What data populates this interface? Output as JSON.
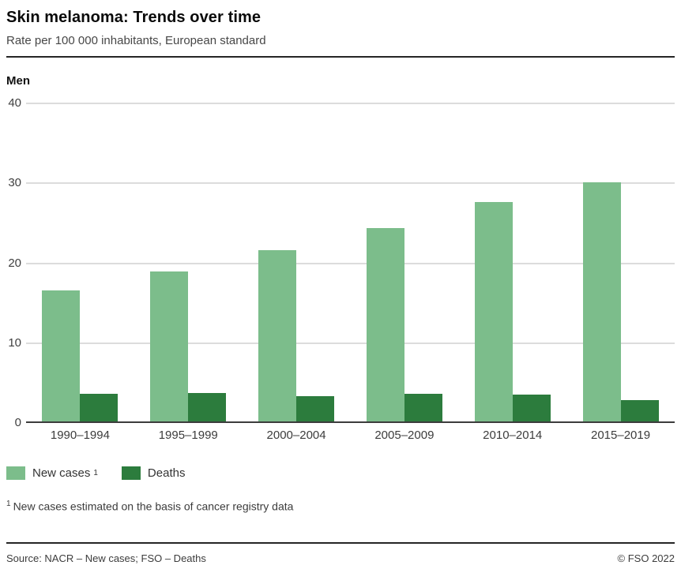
{
  "header": {
    "title": "Skin melanoma: Trends over time",
    "subtitle": "Rate per 100 000 inhabitants, European standard"
  },
  "chart_data": {
    "type": "bar",
    "title": "Men",
    "categories": [
      "1990–1994",
      "1995–1999",
      "2000–2004",
      "2005–2009",
      "2010–2014",
      "2015–2019"
    ],
    "series": [
      {
        "name": "New cases",
        "footnote_marker": "1",
        "color": "#7cbd8b",
        "values": [
          16.6,
          19.0,
          21.6,
          24.4,
          27.7,
          30.1
        ]
      },
      {
        "name": "Deaths",
        "color": "#2c7c3d",
        "values": [
          3.7,
          3.8,
          3.4,
          3.7,
          3.6,
          2.9
        ]
      }
    ],
    "xlabel": "",
    "ylabel": "Rate per 100 000 inhabitants",
    "ylim": [
      0,
      40
    ],
    "yticks": [
      0,
      10,
      20,
      30,
      40
    ],
    "grid": "horizontal",
    "legend_position": "bottom",
    "colors": {
      "grid": "#dcdcdc",
      "axis": "#3c3c3c"
    }
  },
  "footnote": {
    "marker": "1",
    "text": "New cases estimated on the basis of cancer registry data"
  },
  "footer": {
    "source": "Source: NACR – New cases; FSO – Deaths",
    "copyright": "© FSO 2022"
  }
}
